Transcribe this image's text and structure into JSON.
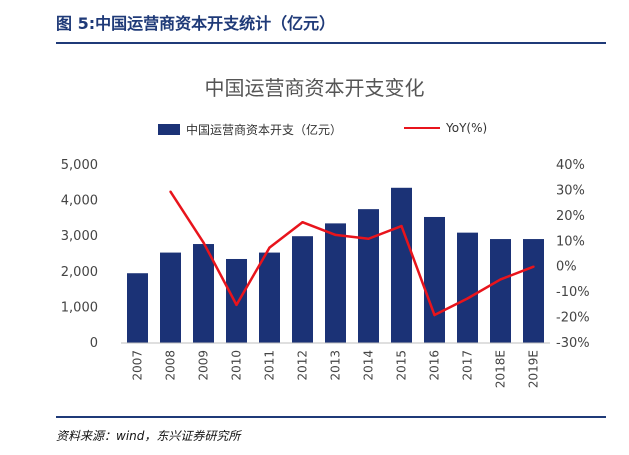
{
  "header": {
    "figure_title": "图 5:中国运营商资本开支统计（亿元）"
  },
  "chart_data": {
    "type": "bar",
    "title": "中国运营商资本开支变化",
    "categories": [
      "2007",
      "2008",
      "2009",
      "2010",
      "2011",
      "2012",
      "2013",
      "2014",
      "2015",
      "2016",
      "2017",
      "2018E",
      "2019E"
    ],
    "series": [
      {
        "name": "中国运营商资本开支（亿元）",
        "type": "bar",
        "axis": "left",
        "color": "#1b3276",
        "values": [
          1960,
          2540,
          2780,
          2360,
          2540,
          3000,
          3360,
          3760,
          4360,
          3540,
          3100,
          2920,
          2920
        ]
      },
      {
        "name": "YoY(%)",
        "type": "line",
        "axis": "right",
        "color": "#e8141c",
        "values": [
          null,
          29.5,
          9.5,
          -15,
          7.5,
          17.5,
          12.5,
          11,
          16,
          -19,
          -12.5,
          -5,
          0
        ]
      }
    ],
    "y_left": {
      "ylim": [
        0,
        5000
      ],
      "ticks": [
        "0",
        "1,000",
        "2,000",
        "3,000",
        "4,000",
        "5,000"
      ],
      "tick_values": [
        0,
        1000,
        2000,
        3000,
        4000,
        5000
      ]
    },
    "y_right": {
      "ylim": [
        -30,
        40
      ],
      "ticks": [
        "-30%",
        "-20%",
        "-10%",
        "0%",
        "10%",
        "20%",
        "30%",
        "40%"
      ],
      "tick_values": [
        -30,
        -20,
        -10,
        0,
        10,
        20,
        30,
        40
      ]
    },
    "legend_position": "top-center",
    "grid": false
  },
  "footer": {
    "source": "资料来源：wind，东兴证券研究所"
  }
}
